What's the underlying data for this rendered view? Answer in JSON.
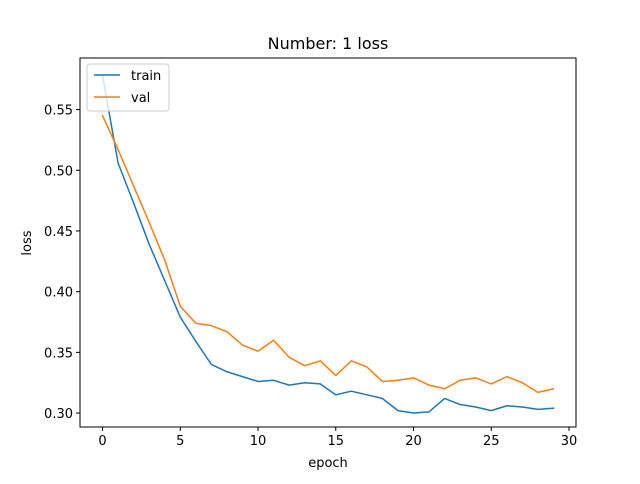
{
  "chart_data": {
    "type": "line",
    "title": "Number: 1 loss",
    "xlabel": "epoch",
    "ylabel": "loss",
    "xlim": [
      -1.45,
      30.45
    ],
    "ylim": [
      0.2885,
      0.5925
    ],
    "xticks": [
      0,
      5,
      10,
      15,
      20,
      25,
      30
    ],
    "xtick_labels": [
      "0",
      "5",
      "10",
      "15",
      "20",
      "25",
      "30"
    ],
    "yticks": [
      0.3,
      0.35,
      0.4,
      0.45,
      0.5,
      0.55
    ],
    "ytick_labels": [
      "0.30",
      "0.35",
      "0.40",
      "0.45",
      "0.50",
      "0.55"
    ],
    "grid": false,
    "legend_position": "top-left",
    "x": [
      0,
      1,
      2,
      3,
      4,
      5,
      6,
      7,
      8,
      9,
      10,
      11,
      12,
      13,
      14,
      15,
      16,
      17,
      18,
      19,
      20,
      21,
      22,
      23,
      24,
      25,
      26,
      27,
      28,
      29
    ],
    "series": [
      {
        "name": "train",
        "color": "#1f77b4",
        "values": [
          0.578,
          0.506,
          0.473,
          0.439,
          0.409,
          0.379,
          0.359,
          0.34,
          0.334,
          0.33,
          0.326,
          0.327,
          0.323,
          0.325,
          0.324,
          0.315,
          0.318,
          0.315,
          0.312,
          0.302,
          0.3,
          0.301,
          0.312,
          0.307,
          0.305,
          0.302,
          0.306,
          0.305,
          0.303,
          0.304
        ]
      },
      {
        "name": "val",
        "color": "#ff7f0e",
        "values": [
          0.545,
          0.517,
          0.487,
          0.457,
          0.426,
          0.388,
          0.374,
          0.372,
          0.367,
          0.356,
          0.351,
          0.36,
          0.346,
          0.339,
          0.343,
          0.331,
          0.343,
          0.338,
          0.326,
          0.327,
          0.329,
          0.323,
          0.32,
          0.327,
          0.329,
          0.324,
          0.33,
          0.325,
          0.317,
          0.32
        ]
      }
    ]
  }
}
